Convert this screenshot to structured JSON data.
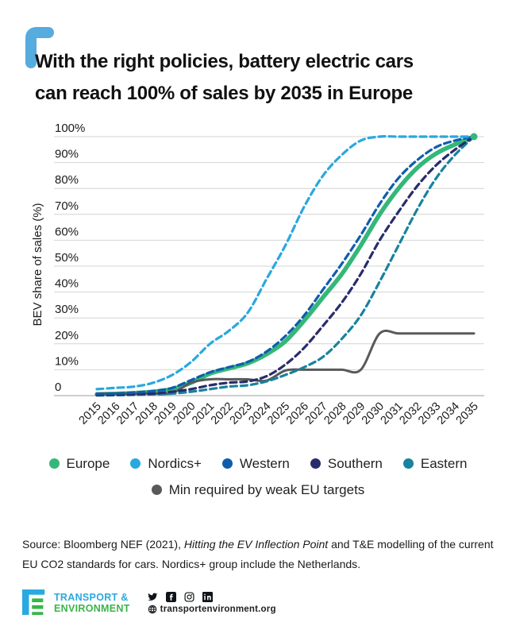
{
  "header": {
    "title_line1": "With the right policies, battery electric cars",
    "title_line2": "can reach 100% of sales by 2035 in Europe",
    "bracket_color": "#56abdf"
  },
  "chart_data": {
    "type": "line",
    "title": "",
    "xlabel": "",
    "ylabel": "BEV share of sales (%)",
    "ylim": [
      0,
      100
    ],
    "grid": true,
    "legend_position": "bottom",
    "yticks": [
      "0",
      "10%",
      "20%",
      "30%",
      "40%",
      "50%",
      "60%",
      "70%",
      "80%",
      "90%",
      "100%"
    ],
    "x": [
      2015,
      2016,
      2017,
      2018,
      2019,
      2020,
      2021,
      2022,
      2023,
      2024,
      2025,
      2026,
      2027,
      2028,
      2029,
      2030,
      2031,
      2032,
      2033,
      2034,
      2035
    ],
    "series": [
      {
        "name": "Europe",
        "color": "#35b779",
        "style": "solid",
        "width": 5.5,
        "values": [
          0.5,
          0.7,
          1,
          1.5,
          2.5,
          5,
          8.5,
          10.5,
          12.5,
          16,
          21,
          29,
          38,
          47,
          58,
          70,
          80,
          88,
          93.5,
          97,
          100
        ]
      },
      {
        "name": "Nordics+",
        "color": "#29a8e0",
        "style": "dashed",
        "width": 3.2,
        "values": [
          2.5,
          3,
          3.5,
          5,
          8,
          13,
          20,
          25,
          32,
          45,
          58,
          73,
          85,
          93,
          98.5,
          100,
          100,
          100,
          100,
          100,
          100
        ]
      },
      {
        "name": "Western",
        "color": "#0e5dad",
        "style": "dashed",
        "width": 3.2,
        "values": [
          0.6,
          0.8,
          1.2,
          1.8,
          3,
          6,
          9,
          11,
          13,
          17,
          23,
          31,
          41,
          51,
          62,
          74,
          84,
          91,
          96,
          98.5,
          100
        ]
      },
      {
        "name": "Southern",
        "color": "#292c6b",
        "style": "dashed",
        "width": 3.2,
        "values": [
          0.2,
          0.3,
          0.5,
          0.8,
          1.5,
          2.5,
          4,
          5,
          5.5,
          7.5,
          12,
          18.5,
          27,
          36,
          47,
          60,
          71,
          81,
          89,
          95,
          100
        ]
      },
      {
        "name": "Eastern",
        "color": "#17839e",
        "style": "dashed",
        "width": 3.2,
        "values": [
          0.1,
          0.2,
          0.3,
          0.5,
          0.8,
          1.5,
          2.5,
          3.5,
          4,
          5.5,
          8,
          11,
          15,
          22,
          31,
          44,
          58,
          72,
          84,
          93,
          100
        ]
      },
      {
        "name": "Min required by weak EU targets",
        "color": "#58595b",
        "style": "solid",
        "width": 3,
        "values": [
          0.8,
          0.8,
          0.8,
          0.8,
          1,
          5,
          6.3,
          6.3,
          6.3,
          5.8,
          9.7,
          10,
          10,
          10,
          10,
          24,
          24,
          24,
          24,
          24,
          24
        ]
      }
    ],
    "grid_color": "#d4d4d4",
    "axis_color": "#9e9e9e",
    "tick_color": "#1a1a1a"
  },
  "source": {
    "prefix": "Source: Bloomberg NEF (2021), ",
    "italic": "Hitting the EV Inflection Point",
    "suffix": " and T&E modelling of the current EU CO2 standards for cars. Nordics+ group include the Netherlands."
  },
  "footer": {
    "brand_line1": "TRANSPORT &",
    "brand_line2": "ENVIRONMENT",
    "brand_blue": "#29a9e1",
    "brand_green": "#39b54a",
    "website": "transportenvironment.org",
    "icon_color": "#0f1419"
  }
}
